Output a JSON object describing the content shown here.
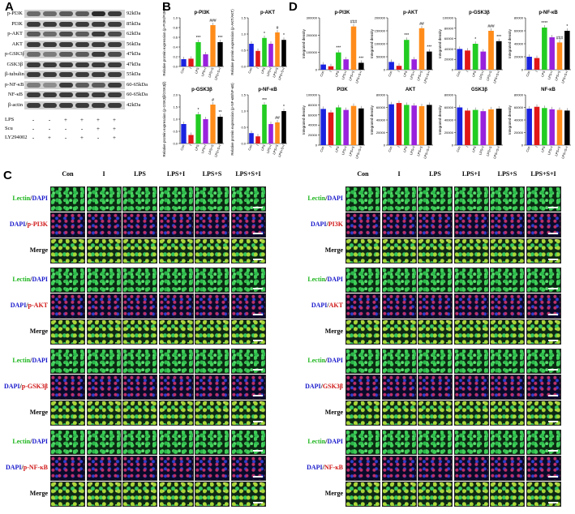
{
  "panel_letters": {
    "a": "A",
    "b": "B",
    "c": "C",
    "d": "D"
  },
  "panelA": {
    "blots": [
      {
        "label": "p-PI3K",
        "kda": "92kDa"
      },
      {
        "label": "PI3K",
        "kda": "85kDa"
      },
      {
        "label": "p-AKT",
        "kda": "62kDa"
      },
      {
        "label": "AKT",
        "kda": "56kDa"
      },
      {
        "label": "p-GSK3β",
        "kda": "47kDa"
      },
      {
        "label": "GSK3β",
        "kda": "47kDa"
      },
      {
        "label": "β-tubulin",
        "kda": "55kDa"
      },
      {
        "label": "p-NF-κB",
        "kda": "60-65kDa"
      },
      {
        "label": "NF-κB",
        "kda": "60-65kDa"
      },
      {
        "label": "β-actin",
        "kda": "42kDa"
      }
    ],
    "conditions": [
      {
        "label": "LPS",
        "marks": [
          "-",
          "-",
          "+",
          "+",
          "+",
          "+"
        ]
      },
      {
        "label": "Scu",
        "marks": [
          "-",
          "-",
          "-",
          "-",
          "+",
          "+"
        ]
      },
      {
        "label": "LY294002",
        "marks": [
          "-",
          "+",
          "-",
          "+",
          "-",
          "+"
        ]
      }
    ]
  },
  "groups": [
    "Con",
    "I",
    "LPS",
    "LPS+I",
    "LPS+S",
    "LPS+S+I"
  ],
  "chart_colors": [
    "#1a22e0",
    "#e01818",
    "#22cc22",
    "#9922dd",
    "#ff8c1a",
    "#000000"
  ],
  "chart_data": [
    {
      "type": "bar",
      "title": "p-PI3K",
      "ylabel": "Relative protein expression (p-PI3K/PI3K)",
      "ylim": [
        0,
        1.0
      ],
      "yticks": [
        "0.0",
        "0.2",
        "0.4",
        "0.6",
        "0.8",
        "1.0"
      ],
      "categories": [
        "Con",
        "I",
        "LPS",
        "LPS+I",
        "LPS+S",
        "LPS+S+I"
      ],
      "values": [
        0.15,
        0.16,
        0.5,
        0.25,
        0.85,
        0.5
      ],
      "annotations": [
        "",
        "",
        "***",
        "",
        "###",
        "***"
      ]
    },
    {
      "type": "bar",
      "title": "p-AKT",
      "ylabel": "Relative protein expression (p-AKT/AKT)",
      "ylim": [
        0,
        1.5
      ],
      "yticks": [
        "0.0",
        "0.5",
        "1.0",
        "1.5"
      ],
      "categories": [
        "Con",
        "I",
        "LPS",
        "LPS+I",
        "LPS+S",
        "LPS+S+I"
      ],
      "values": [
        0.7,
        0.48,
        0.88,
        0.7,
        1.05,
        0.82
      ],
      "annotations": [
        "",
        "",
        "*",
        "",
        "#",
        "*"
      ]
    },
    {
      "type": "bar",
      "title": "p-GSK3β",
      "ylabel": "Relative protein expression (p-GSK3β/GSK3β)",
      "ylim": [
        0,
        2.0
      ],
      "yticks": [
        "0.0",
        "0.5",
        "1.0",
        "1.5",
        "2.0"
      ],
      "categories": [
        "Con",
        "I",
        "LPS",
        "LPS+I",
        "LPS+S",
        "LPS+S+I"
      ],
      "values": [
        0.8,
        0.35,
        1.2,
        1.0,
        1.6,
        1.1
      ],
      "annotations": [
        "",
        "",
        "*",
        "",
        "#",
        "**"
      ]
    },
    {
      "type": "bar",
      "title": "p-NF-κB",
      "ylabel": "Relative protein expression (p-NF-κB/NF-κB)",
      "ylim": [
        0,
        1.5
      ],
      "yticks": [
        "0.0",
        "0.5",
        "1.0",
        "1.5"
      ],
      "categories": [
        "Con",
        "I",
        "LPS",
        "LPS+I",
        "LPS+S",
        "LPS+S+I"
      ],
      "values": [
        0.32,
        0.22,
        1.2,
        0.6,
        0.65,
        1.0
      ],
      "annotations": [
        "",
        "",
        "***",
        "",
        "##",
        "*"
      ]
    },
    {
      "type": "bar",
      "title": "p-PI3K",
      "ylabel": "Integrated density",
      "ylim": [
        0,
        300000
      ],
      "yticks": [
        "0",
        "100000",
        "200000",
        "300000"
      ],
      "categories": [
        "Con",
        "I",
        "LPS",
        "LPS+I",
        "LPS+S",
        "LPS+S+I"
      ],
      "values": [
        30000,
        20000,
        100000,
        60000,
        250000,
        40000
      ],
      "annotations": [
        "",
        "",
        "***",
        "",
        "###",
        "***"
      ]
    },
    {
      "type": "bar",
      "title": "p-AKT",
      "ylabel": "Integrated density",
      "ylim": [
        0,
        200000
      ],
      "yticks": [
        "0",
        "50000",
        "100000",
        "150000",
        "200000"
      ],
      "categories": [
        "Con",
        "I",
        "LPS",
        "LPS+I",
        "LPS+S",
        "LPS+S+I"
      ],
      "values": [
        30000,
        15000,
        115000,
        40000,
        160000,
        70000
      ],
      "annotations": [
        "",
        "",
        "***",
        "",
        "##",
        "***"
      ]
    },
    {
      "type": "bar",
      "title": "p-GSK3β",
      "ylabel": "Integrated density",
      "ylim": [
        0,
        100000
      ],
      "yticks": [
        "0",
        "20000",
        "40000",
        "60000",
        "80000",
        "100000"
      ],
      "categories": [
        "Con",
        "I",
        "LPS",
        "LPS+I",
        "LPS+S",
        "LPS+S+I"
      ],
      "values": [
        40000,
        37000,
        50000,
        35000,
        75000,
        55000
      ],
      "annotations": [
        "",
        "",
        "*",
        "",
        "###",
        "***"
      ]
    },
    {
      "type": "bar",
      "title": "p-NF-κB",
      "ylabel": "Integrated density",
      "ylim": [
        0,
        80000
      ],
      "yticks": [
        "0",
        "20000",
        "40000",
        "60000",
        "80000"
      ],
      "categories": [
        "Con",
        "I",
        "LPS",
        "LPS+I",
        "LPS+S",
        "LPS+S+I"
      ],
      "values": [
        20000,
        18000,
        65000,
        50000,
        42000,
        60000
      ],
      "annotations": [
        "",
        "",
        "****",
        "",
        "###",
        "*"
      ]
    },
    {
      "type": "bar",
      "title": "PI3K",
      "ylabel": "Integrated density",
      "ylim": [
        0,
        100000
      ],
      "yticks": [
        "0",
        "20000",
        "40000",
        "60000",
        "80000",
        "100000"
      ],
      "categories": [
        "Con",
        "I",
        "LPS",
        "LPS+I",
        "LPS+S",
        "LPS+S+I"
      ],
      "values": [
        72000,
        65000,
        75000,
        70000,
        78000,
        73000
      ],
      "annotations": []
    },
    {
      "type": "bar",
      "title": "AKT",
      "ylabel": "Integrated density",
      "ylim": [
        0,
        80000
      ],
      "yticks": [
        "0",
        "20000",
        "40000",
        "60000",
        "80000"
      ],
      "categories": [
        "Con",
        "I",
        "LPS",
        "LPS+I",
        "LPS+S",
        "LPS+S+I"
      ],
      "values": [
        65000,
        67000,
        64000,
        63000,
        62000,
        64000
      ],
      "annotations": []
    },
    {
      "type": "bar",
      "title": "GSK3β",
      "ylabel": "Integrated density",
      "ylim": [
        0,
        80000
      ],
      "yticks": [
        "0",
        "20000",
        "40000",
        "60000",
        "80000"
      ],
      "categories": [
        "Con",
        "I",
        "LPS",
        "LPS+I",
        "LPS+S",
        "LPS+S+I"
      ],
      "values": [
        60000,
        55000,
        56000,
        54000,
        57000,
        58000
      ],
      "annotations": []
    },
    {
      "type": "bar",
      "title": "NF-κB",
      "ylabel": "Integrated density",
      "ylim": [
        0,
        80000
      ],
      "yticks": [
        "0",
        "20000",
        "40000",
        "60000",
        "80000"
      ],
      "categories": [
        "Con",
        "I",
        "LPS",
        "LPS+I",
        "LPS+S",
        "LPS+S+I"
      ],
      "values": [
        58000,
        61000,
        59000,
        57000,
        56000,
        55000
      ],
      "annotations": []
    }
  ],
  "panelC": {
    "columns": [
      "Con",
      "I",
      "LPS",
      "LPS+I",
      "LPS+S",
      "LPS+S+I"
    ],
    "left_rows": [
      {
        "parts": [
          "Lectin",
          "/",
          "DAPI"
        ],
        "colors": [
          "green",
          "",
          "blue"
        ],
        "type": "g"
      },
      {
        "parts": [
          "DAPI",
          "/",
          "p-PI3K"
        ],
        "colors": [
          "blue",
          "",
          "red"
        ],
        "type": "b"
      },
      {
        "parts": [
          "Merge",
          "",
          ""
        ],
        "colors": [
          "",
          "",
          ""
        ],
        "type": "m"
      },
      {
        "parts": [
          "Lectin",
          "/",
          "DAPI"
        ],
        "colors": [
          "green",
          "",
          "blue"
        ],
        "type": "g"
      },
      {
        "parts": [
          "DAPI",
          "/",
          "p-AKT"
        ],
        "colors": [
          "blue",
          "",
          "red"
        ],
        "type": "b"
      },
      {
        "parts": [
          "Merge",
          "",
          ""
        ],
        "colors": [
          "",
          "",
          ""
        ],
        "type": "m"
      },
      {
        "parts": [
          "Lectin",
          "/",
          "DAPI"
        ],
        "colors": [
          "green",
          "",
          "blue"
        ],
        "type": "g"
      },
      {
        "parts": [
          "DAPI",
          "/",
          "p-GSK3β"
        ],
        "colors": [
          "blue",
          "",
          "red"
        ],
        "type": "b"
      },
      {
        "parts": [
          "Merge",
          "",
          ""
        ],
        "colors": [
          "",
          "",
          ""
        ],
        "type": "m"
      },
      {
        "parts": [
          "Lectin",
          "/",
          "DAPI"
        ],
        "colors": [
          "green",
          "",
          "blue"
        ],
        "type": "g"
      },
      {
        "parts": [
          "DAPI",
          "/",
          "p-NF-κB"
        ],
        "colors": [
          "blue",
          "",
          "red"
        ],
        "type": "b"
      },
      {
        "parts": [
          "Merge",
          "",
          ""
        ],
        "colors": [
          "",
          "",
          ""
        ],
        "type": "m"
      }
    ],
    "right_rows": [
      {
        "parts": [
          "Lectin",
          "/",
          "DAPI"
        ],
        "colors": [
          "green",
          "",
          "blue"
        ],
        "type": "g"
      },
      {
        "parts": [
          "DAPI",
          "/",
          "PI3K"
        ],
        "colors": [
          "blue",
          "",
          "red"
        ],
        "type": "b"
      },
      {
        "parts": [
          "Merge",
          "",
          ""
        ],
        "colors": [
          "",
          "",
          ""
        ],
        "type": "m"
      },
      {
        "parts": [
          "Lectin",
          "/",
          "DAPI"
        ],
        "colors": [
          "green",
          "",
          "blue"
        ],
        "type": "g"
      },
      {
        "parts": [
          "DAPI",
          "/",
          "AKT"
        ],
        "colors": [
          "blue",
          "",
          "red"
        ],
        "type": "b"
      },
      {
        "parts": [
          "Merge",
          "",
          ""
        ],
        "colors": [
          "",
          "",
          ""
        ],
        "type": "m"
      },
      {
        "parts": [
          "Lectin",
          "/",
          "DAPI"
        ],
        "colors": [
          "green",
          "",
          "blue"
        ],
        "type": "g"
      },
      {
        "parts": [
          "DAPI",
          "/",
          "GSK3β"
        ],
        "colors": [
          "blue",
          "",
          "red"
        ],
        "type": "b"
      },
      {
        "parts": [
          "Merge",
          "",
          ""
        ],
        "colors": [
          "",
          "",
          ""
        ],
        "type": "m"
      },
      {
        "parts": [
          "Lectin",
          "/",
          "DAPI"
        ],
        "colors": [
          "green",
          "",
          "blue"
        ],
        "type": "g"
      },
      {
        "parts": [
          "DAPI",
          "/",
          "NF-κB"
        ],
        "colors": [
          "blue",
          "",
          "red"
        ],
        "type": "b"
      },
      {
        "parts": [
          "Merge",
          "",
          ""
        ],
        "colors": [
          "",
          "",
          ""
        ],
        "type": "m"
      }
    ]
  }
}
